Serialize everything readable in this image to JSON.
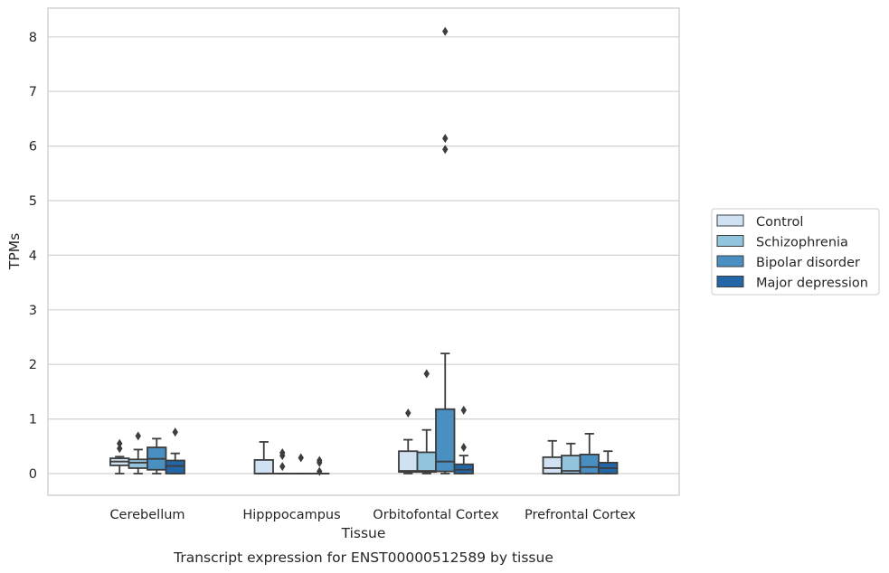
{
  "chart_data": {
    "type": "box",
    "title": "Transcript expression for ENST00000512589 by tissue",
    "xlabel": "Tissue",
    "ylabel": "TPMs",
    "ylim": [
      -0.4,
      8.5
    ],
    "yticks": [
      0,
      1,
      2,
      3,
      4,
      5,
      6,
      7,
      8
    ],
    "grid": true,
    "legend_position": "right",
    "categories": [
      "Cerebellum",
      "Hipppocampus",
      "Orbitofontal Cortex",
      "Prefrontal Cortex"
    ],
    "series": [
      {
        "name": "Control",
        "color": "#cfe1f2",
        "boxes": [
          {
            "whislo": 0.0,
            "q1": 0.15,
            "med": 0.22,
            "q3": 0.28,
            "whishi": 0.31,
            "fliers": [
              0.46,
              0.55
            ]
          },
          {
            "whislo": 0.0,
            "q1": 0.0,
            "med": 0.0,
            "q3": 0.25,
            "whishi": 0.58,
            "fliers": []
          },
          {
            "whislo": 0.0,
            "q1": 0.03,
            "med": 0.05,
            "q3": 0.41,
            "whishi": 0.62,
            "fliers": [
              1.11
            ]
          },
          {
            "whislo": 0.0,
            "q1": 0.0,
            "med": 0.1,
            "q3": 0.3,
            "whishi": 0.6,
            "fliers": []
          }
        ]
      },
      {
        "name": "Schizophrenia",
        "color": "#93c4de",
        "boxes": [
          {
            "whislo": 0.0,
            "q1": 0.1,
            "med": 0.2,
            "q3": 0.26,
            "whishi": 0.44,
            "fliers": [
              0.69
            ]
          },
          {
            "whislo": 0.0,
            "q1": 0.0,
            "med": 0.0,
            "q3": 0.0,
            "whishi": 0.0,
            "fliers": [
              0.13,
              0.33,
              0.38
            ]
          },
          {
            "whislo": 0.0,
            "q1": 0.03,
            "med": 0.05,
            "q3": 0.39,
            "whishi": 0.8,
            "fliers": [
              1.83
            ]
          },
          {
            "whislo": 0.0,
            "q1": 0.0,
            "med": 0.05,
            "q3": 0.33,
            "whishi": 0.55,
            "fliers": []
          }
        ]
      },
      {
        "name": "Bipolar disorder",
        "color": "#4a8fc2",
        "boxes": [
          {
            "whislo": 0.0,
            "q1": 0.07,
            "med": 0.27,
            "q3": 0.48,
            "whishi": 0.64,
            "fliers": []
          },
          {
            "whislo": 0.0,
            "q1": 0.0,
            "med": 0.0,
            "q3": 0.0,
            "whishi": 0.0,
            "fliers": [
              0.29
            ]
          },
          {
            "whislo": 0.0,
            "q1": 0.04,
            "med": 0.22,
            "q3": 1.18,
            "whishi": 2.2,
            "fliers": [
              5.94,
              6.14,
              8.1
            ]
          },
          {
            "whislo": 0.0,
            "q1": 0.0,
            "med": 0.12,
            "q3": 0.35,
            "whishi": 0.73,
            "fliers": []
          }
        ]
      },
      {
        "name": "Major depression",
        "color": "#2366a8",
        "boxes": [
          {
            "whislo": 0.0,
            "q1": 0.0,
            "med": 0.14,
            "q3": 0.24,
            "whishi": 0.37,
            "fliers": [
              0.76
            ]
          },
          {
            "whislo": 0.0,
            "q1": 0.0,
            "med": 0.0,
            "q3": 0.0,
            "whishi": 0.0,
            "fliers": [
              0.04,
              0.2,
              0.24
            ]
          },
          {
            "whislo": 0.0,
            "q1": 0.0,
            "med": 0.07,
            "q3": 0.17,
            "whishi": 0.33,
            "fliers": [
              0.48,
              1.16
            ]
          },
          {
            "whislo": 0.0,
            "q1": 0.0,
            "med": 0.1,
            "q3": 0.2,
            "whishi": 0.41,
            "fliers": []
          }
        ]
      }
    ]
  }
}
